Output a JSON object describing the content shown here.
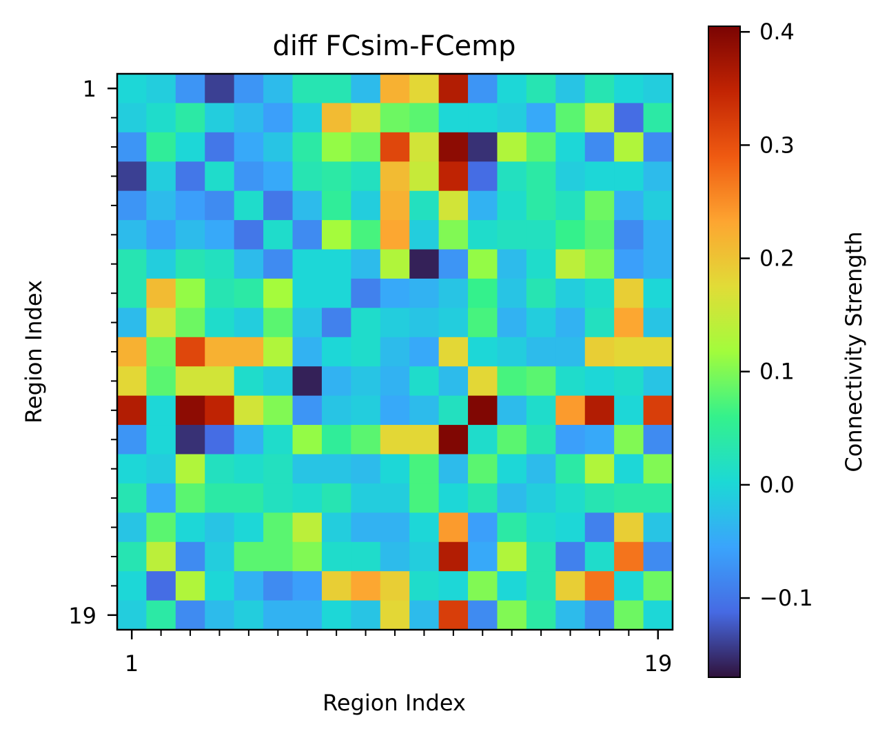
{
  "chart_data": {
    "type": "heatmap",
    "title": "diff FCsim-FCemp",
    "xlabel": "Region Index",
    "ylabel": "Region Index",
    "colorbar_label": "Connectivity Strength",
    "x_tick_labels": [
      "1",
      "19"
    ],
    "y_tick_labels": [
      "1",
      "19"
    ],
    "colorbar_ticks": [
      -0.1,
      0.0,
      0.1,
      0.2,
      0.3,
      0.4
    ],
    "colorbar_tick_labels": [
      "−0.1",
      "0.0",
      "0.1",
      "0.2",
      "0.3",
      "0.4"
    ],
    "vmin": -0.17,
    "vmax": 0.405,
    "colormap": "turbo",
    "rows": 19,
    "cols": 19,
    "values": [
      [
        0.0,
        -0.01,
        -0.07,
        -0.14,
        -0.07,
        -0.03,
        0.03,
        0.03,
        -0.03,
        0.22,
        0.18,
        0.36,
        -0.07,
        0.0,
        0.03,
        -0.02,
        0.03,
        0.0,
        -0.01
      ],
      [
        -0.01,
        0.01,
        0.04,
        -0.01,
        -0.03,
        -0.06,
        -0.01,
        0.21,
        0.16,
        0.09,
        0.08,
        0.0,
        0.0,
        -0.01,
        -0.05,
        0.08,
        0.14,
        -0.11,
        0.04
      ],
      [
        -0.07,
        0.05,
        0.0,
        -0.1,
        -0.05,
        -0.02,
        0.04,
        0.11,
        0.09,
        0.31,
        0.16,
        0.39,
        -0.15,
        0.13,
        0.08,
        0.0,
        -0.08,
        0.13,
        -0.08
      ],
      [
        -0.14,
        -0.01,
        -0.1,
        0.01,
        -0.07,
        -0.05,
        0.03,
        0.04,
        0.02,
        0.21,
        0.15,
        0.35,
        -0.11,
        0.02,
        0.04,
        -0.01,
        0.0,
        0.0,
        -0.03
      ],
      [
        -0.07,
        -0.03,
        -0.06,
        -0.08,
        0.01,
        -0.1,
        -0.03,
        0.05,
        -0.01,
        0.22,
        0.02,
        0.16,
        -0.04,
        0.01,
        0.04,
        0.02,
        0.09,
        -0.04,
        -0.01
      ],
      [
        -0.03,
        -0.06,
        -0.03,
        -0.05,
        -0.1,
        0.01,
        -0.08,
        0.12,
        0.07,
        0.23,
        -0.01,
        0.1,
        0.01,
        0.02,
        0.02,
        0.06,
        0.08,
        -0.08,
        -0.04
      ],
      [
        0.03,
        -0.01,
        0.03,
        0.02,
        -0.03,
        -0.08,
        0.0,
        0.0,
        -0.03,
        0.13,
        -0.16,
        -0.07,
        0.11,
        -0.03,
        0.01,
        0.14,
        0.1,
        -0.06,
        -0.04
      ],
      [
        0.03,
        0.21,
        0.11,
        0.03,
        0.04,
        0.12,
        0.0,
        0.0,
        -0.09,
        -0.05,
        -0.04,
        -0.02,
        0.06,
        -0.02,
        0.03,
        -0.01,
        0.01,
        0.19,
        0.0
      ],
      [
        -0.03,
        0.16,
        0.09,
        0.01,
        -0.01,
        0.08,
        -0.02,
        -0.09,
        0.01,
        -0.01,
        -0.02,
        -0.01,
        0.07,
        -0.04,
        -0.01,
        -0.04,
        0.02,
        0.23,
        -0.02
      ],
      [
        0.22,
        0.09,
        0.31,
        0.22,
        0.22,
        0.13,
        -0.04,
        0.0,
        0.01,
        -0.03,
        -0.05,
        0.18,
        0.0,
        -0.01,
        -0.03,
        -0.03,
        0.19,
        0.18,
        0.18
      ],
      [
        0.18,
        0.08,
        0.16,
        0.16,
        0.01,
        -0.01,
        -0.16,
        -0.04,
        -0.02,
        -0.04,
        0.01,
        -0.03,
        0.18,
        0.07,
        0.08,
        0.01,
        0.0,
        0.01,
        -0.02
      ],
      [
        0.36,
        0.0,
        0.39,
        0.35,
        0.16,
        0.1,
        -0.07,
        -0.02,
        -0.01,
        -0.05,
        -0.03,
        0.02,
        0.4,
        -0.03,
        0.01,
        0.24,
        0.36,
        0.0,
        0.32
      ],
      [
        -0.07,
        0.0,
        -0.15,
        -0.11,
        -0.04,
        0.01,
        0.11,
        0.05,
        0.08,
        0.18,
        0.18,
        0.4,
        0.01,
        0.08,
        0.03,
        -0.06,
        -0.05,
        0.1,
        -0.08
      ],
      [
        0.0,
        -0.01,
        0.13,
        0.02,
        0.01,
        0.02,
        -0.02,
        -0.02,
        -0.03,
        0.0,
        0.07,
        -0.03,
        0.08,
        0.0,
        -0.03,
        0.04,
        0.13,
        0.0,
        0.1
      ],
      [
        0.03,
        -0.05,
        0.08,
        0.04,
        0.04,
        0.02,
        0.01,
        0.03,
        -0.01,
        -0.01,
        0.07,
        0.0,
        0.03,
        -0.03,
        -0.01,
        0.01,
        0.03,
        0.04,
        0.04
      ],
      [
        -0.02,
        0.08,
        0.0,
        -0.02,
        0.0,
        0.08,
        0.14,
        -0.01,
        -0.04,
        -0.04,
        0.0,
        0.24,
        -0.06,
        0.04,
        0.01,
        0.0,
        -0.09,
        0.19,
        -0.02
      ],
      [
        0.03,
        0.14,
        -0.08,
        -0.01,
        0.08,
        0.08,
        0.1,
        0.01,
        0.01,
        -0.03,
        -0.01,
        0.36,
        -0.05,
        0.13,
        0.03,
        -0.09,
        0.01,
        0.27,
        -0.08
      ],
      [
        0.0,
        -0.11,
        0.13,
        0.0,
        -0.04,
        -0.08,
        -0.06,
        0.19,
        0.23,
        0.19,
        0.01,
        0.0,
        0.1,
        0.0,
        0.03,
        0.19,
        0.27,
        0.0,
        0.09
      ],
      [
        -0.01,
        0.04,
        -0.08,
        -0.03,
        -0.01,
        -0.04,
        -0.04,
        0.0,
        -0.02,
        0.18,
        -0.03,
        0.32,
        -0.08,
        0.1,
        0.04,
        -0.03,
        -0.08,
        0.09,
        0.0
      ]
    ]
  }
}
